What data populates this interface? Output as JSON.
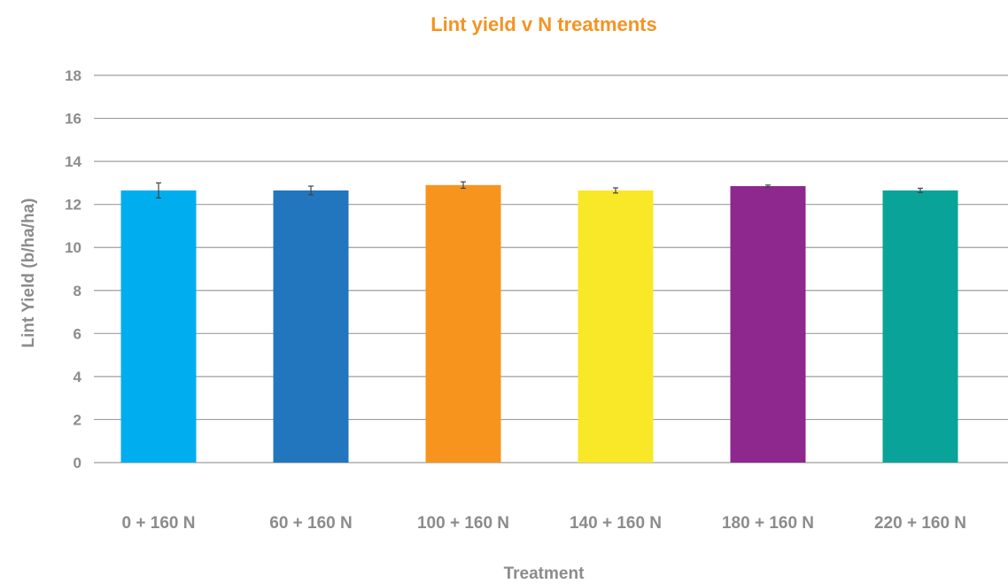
{
  "colors": {
    "title": "#f39422",
    "axis_text": "#8c8c8c",
    "grid": "#9e9e9e",
    "bars": [
      "#00aeef",
      "#2176bd",
      "#f7941e",
      "#f9e827",
      "#8e278e",
      "#0aa39a"
    ]
  },
  "chart_data": {
    "type": "bar",
    "title": "Lint yield v N treatments",
    "xlabel": "Treatment",
    "ylabel": "Lint Yield (b/ha/ha)",
    "ylim": [
      0,
      18
    ],
    "yticks": [
      "0",
      "2",
      "4",
      "6",
      "8",
      "10",
      "12",
      "14",
      "16",
      "18"
    ],
    "grid": true,
    "legend": "none",
    "categories": [
      "0 + 160 N",
      "60 + 160 N",
      "100 + 160 N",
      "140 + 160 N",
      "180 + 160 N",
      "220 + 160 N"
    ],
    "values": [
      12.65,
      12.65,
      12.9,
      12.65,
      12.85,
      12.65
    ],
    "error": [
      0.35,
      0.2,
      0.15,
      0.12,
      0.05,
      0.1
    ]
  }
}
